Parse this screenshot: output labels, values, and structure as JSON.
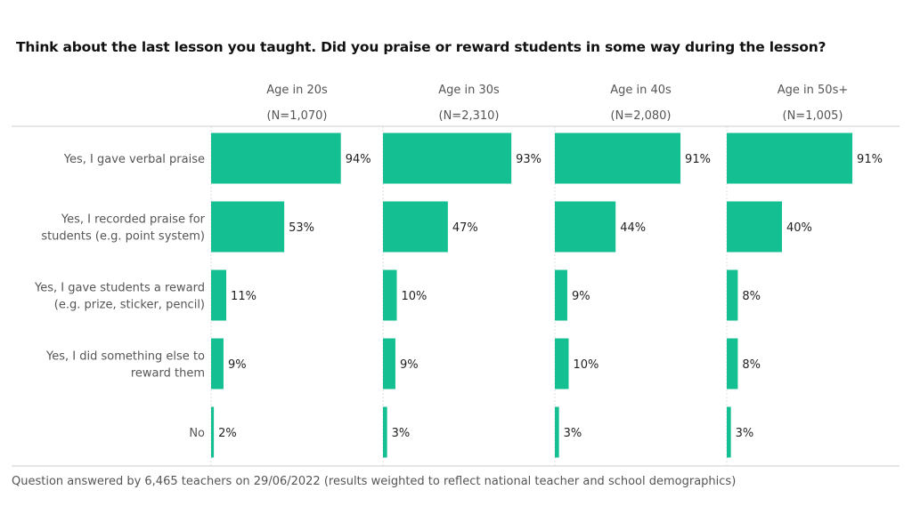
{
  "chart_data": {
    "type": "bar",
    "orientation": "horizontal",
    "title": "Think about the last lesson you taught. Did you praise or reward students in some way during the lesson?",
    "categories": [
      [
        "Yes, I gave verbal praise"
      ],
      [
        "Yes, I recorded praise for",
        "students (e.g. point system)"
      ],
      [
        "Yes, I gave students a reward",
        "(e.g. prize, sticker, pencil)"
      ],
      [
        "Yes, I did something else to",
        "reward them"
      ],
      [
        "No"
      ]
    ],
    "panels": [
      {
        "label": "Age in 20s",
        "n": "(N=1,070)",
        "values": [
          94,
          53,
          11,
          9,
          2
        ]
      },
      {
        "label": "Age in 30s",
        "n": "(N=2,310)",
        "values": [
          93,
          47,
          10,
          9,
          3
        ]
      },
      {
        "label": "Age in 40s",
        "n": "(N=2,080)",
        "values": [
          91,
          44,
          9,
          10,
          3
        ]
      },
      {
        "label": "Age in 50s+",
        "n": "(N=1,005)",
        "values": [
          91,
          40,
          8,
          8,
          3
        ]
      }
    ],
    "value_format": "percent",
    "xlim": [
      0,
      100
    ],
    "bar_color": "#14bf92",
    "grid": false,
    "footnote": "Question answered by 6,465 teachers on 29/06/2022 (results weighted to reflect national teacher and school demographics)"
  }
}
